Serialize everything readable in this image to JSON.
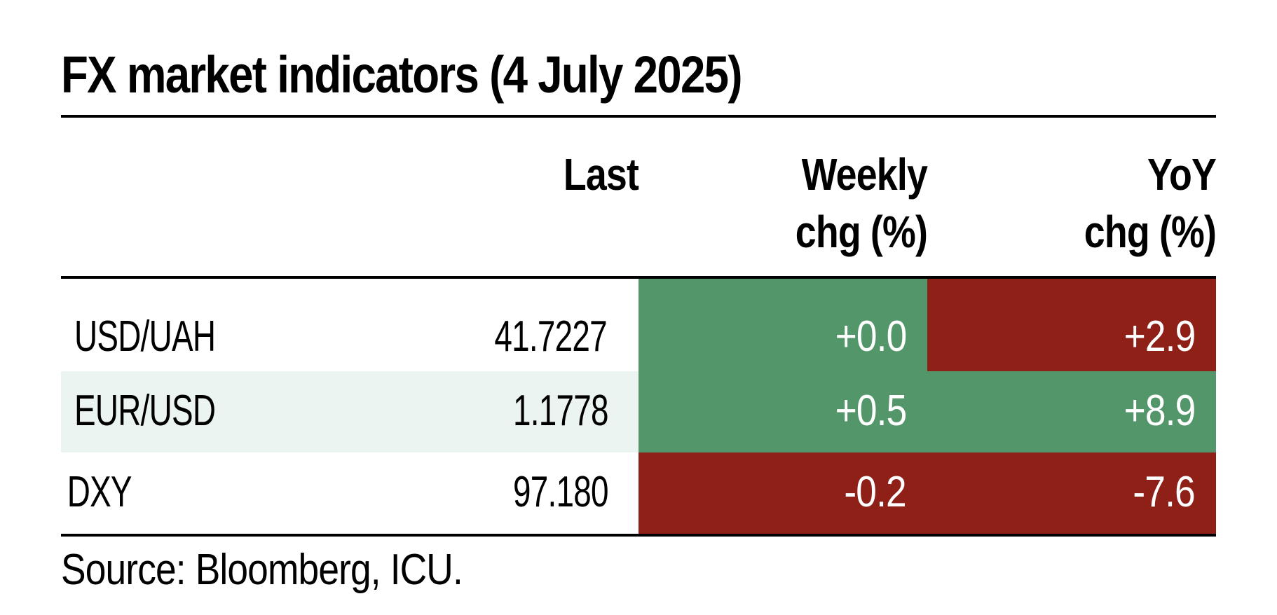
{
  "title": "FX market indicators (4 July 2025)",
  "columns": {
    "last": "Last",
    "weekly_line1": "Weekly",
    "weekly_line2": "chg (%)",
    "yoy_line1": "YoY",
    "yoy_line2": "chg (%)"
  },
  "rows": [
    {
      "name": "USD/UAH",
      "last": "41.7227",
      "weekly": "+0.0",
      "yoy": "+2.9",
      "weekly_color": "#529669",
      "yoy_color": "#8e2018"
    },
    {
      "name": "EUR/USD",
      "last": "1.1778",
      "weekly": "+0.5",
      "yoy": "+8.9",
      "weekly_color": "#529669",
      "yoy_color": "#529669"
    },
    {
      "name": "DXY",
      "last": "97.180",
      "weekly": "-0.2",
      "yoy": "-7.6",
      "weekly_color": "#8e2018",
      "yoy_color": "#8e2018"
    }
  ],
  "source": "Source: Bloomberg, ICU.",
  "colors": {
    "positive_green": "#529669",
    "negative_red": "#8e2018",
    "row_highlight": "#ecf4f2"
  }
}
